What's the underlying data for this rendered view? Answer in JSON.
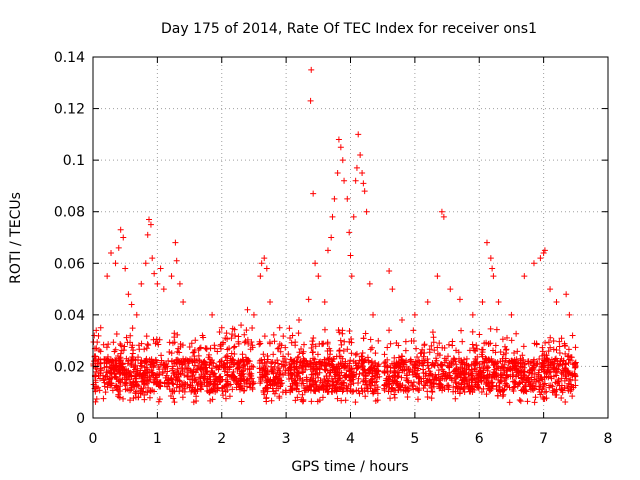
{
  "chart_data": {
    "type": "scatter",
    "title": "Day 175 of 2014, Rate Of TEC Index for receiver ons1",
    "xlabel": "GPS time / hours",
    "ylabel": "ROTI / TECUs",
    "xlim": [
      0,
      8
    ],
    "ylim": [
      0,
      0.14
    ],
    "x_ticks": [
      "0",
      "1",
      "2",
      "3",
      "4",
      "5",
      "6",
      "7",
      "8"
    ],
    "y_ticks": [
      "0",
      "0.02",
      "0.04",
      "0.06",
      "0.08",
      "0.1",
      "0.12",
      "0.14"
    ],
    "grid": true,
    "marker": "+",
    "series": [
      {
        "name": "ROTI",
        "color": "#ff0000",
        "baseline_range": [
          0.006,
          0.035
        ],
        "x_extent": [
          0,
          7.5
        ],
        "gaps": [
          [
            2.5,
            2.58
          ],
          [
            3.0,
            3.03
          ],
          [
            4.45,
            4.52
          ]
        ],
        "notable_points": [
          [
            0.02,
            0.032
          ],
          [
            0.05,
            0.034
          ],
          [
            0.12,
            0.035
          ],
          [
            0.22,
            0.055
          ],
          [
            0.28,
            0.064
          ],
          [
            0.35,
            0.06
          ],
          [
            0.4,
            0.066
          ],
          [
            0.43,
            0.073
          ],
          [
            0.47,
            0.07
          ],
          [
            0.5,
            0.058
          ],
          [
            0.55,
            0.048
          ],
          [
            0.6,
            0.044
          ],
          [
            0.68,
            0.04
          ],
          [
            0.75,
            0.052
          ],
          [
            0.82,
            0.06
          ],
          [
            0.85,
            0.071
          ],
          [
            0.87,
            0.077
          ],
          [
            0.9,
            0.075
          ],
          [
            0.92,
            0.062
          ],
          [
            0.95,
            0.056
          ],
          [
            1.0,
            0.052
          ],
          [
            1.05,
            0.058
          ],
          [
            1.1,
            0.05
          ],
          [
            1.22,
            0.055
          ],
          [
            1.28,
            0.068
          ],
          [
            1.3,
            0.061
          ],
          [
            1.35,
            0.052
          ],
          [
            1.4,
            0.045
          ],
          [
            1.7,
            0.032
          ],
          [
            1.85,
            0.04
          ],
          [
            2.0,
            0.035
          ],
          [
            2.15,
            0.031
          ],
          [
            2.3,
            0.036
          ],
          [
            2.4,
            0.042
          ],
          [
            2.5,
            0.04
          ],
          [
            2.6,
            0.055
          ],
          [
            2.62,
            0.06
          ],
          [
            2.66,
            0.062
          ],
          [
            2.7,
            0.058
          ],
          [
            2.75,
            0.045
          ],
          [
            2.9,
            0.035
          ],
          [
            3.1,
            0.032
          ],
          [
            3.2,
            0.038
          ],
          [
            3.35,
            0.046
          ],
          [
            3.38,
            0.123
          ],
          [
            3.39,
            0.135
          ],
          [
            3.42,
            0.087
          ],
          [
            3.45,
            0.06
          ],
          [
            3.5,
            0.055
          ],
          [
            3.6,
            0.045
          ],
          [
            3.65,
            0.065
          ],
          [
            3.7,
            0.07
          ],
          [
            3.72,
            0.078
          ],
          [
            3.75,
            0.085
          ],
          [
            3.8,
            0.095
          ],
          [
            3.82,
            0.108
          ],
          [
            3.85,
            0.105
          ],
          [
            3.88,
            0.1
          ],
          [
            3.9,
            0.092
          ],
          [
            3.95,
            0.085
          ],
          [
            3.98,
            0.072
          ],
          [
            4.0,
            0.063
          ],
          [
            4.02,
            0.055
          ],
          [
            4.05,
            0.078
          ],
          [
            4.08,
            0.092
          ],
          [
            4.1,
            0.097
          ],
          [
            4.12,
            0.11
          ],
          [
            4.15,
            0.102
          ],
          [
            4.18,
            0.095
          ],
          [
            4.2,
            0.091
          ],
          [
            4.22,
            0.088
          ],
          [
            4.25,
            0.08
          ],
          [
            4.3,
            0.052
          ],
          [
            4.35,
            0.04
          ],
          [
            4.6,
            0.057
          ],
          [
            4.65,
            0.05
          ],
          [
            4.8,
            0.038
          ],
          [
            5.0,
            0.04
          ],
          [
            5.2,
            0.045
          ],
          [
            5.35,
            0.055
          ],
          [
            5.42,
            0.08
          ],
          [
            5.45,
            0.078
          ],
          [
            5.55,
            0.05
          ],
          [
            5.7,
            0.046
          ],
          [
            5.9,
            0.04
          ],
          [
            6.05,
            0.045
          ],
          [
            6.12,
            0.068
          ],
          [
            6.18,
            0.062
          ],
          [
            6.2,
            0.058
          ],
          [
            6.22,
            0.055
          ],
          [
            6.3,
            0.045
          ],
          [
            6.5,
            0.04
          ],
          [
            6.7,
            0.055
          ],
          [
            6.85,
            0.06
          ],
          [
            6.95,
            0.062
          ],
          [
            7.0,
            0.064
          ],
          [
            7.02,
            0.065
          ],
          [
            7.1,
            0.05
          ],
          [
            7.2,
            0.045
          ],
          [
            7.35,
            0.048
          ],
          [
            7.4,
            0.04
          ],
          [
            7.45,
            0.032
          ]
        ]
      }
    ]
  }
}
